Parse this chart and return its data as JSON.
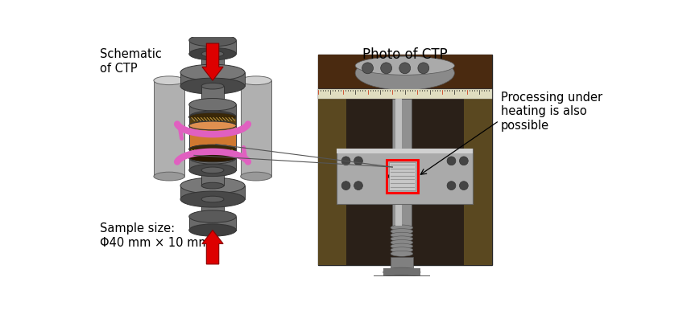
{
  "background_color": "#ffffff",
  "title_photo": "Photo of CTP",
  "label_schematic": "Schematic\nof CTP",
  "label_sample": "Sample size:\nΦ40 mm × 10 mm",
  "label_heating": "Processing under\nheating is also\npossible",
  "title_fontsize": 12,
  "label_fontsize": 10.5,
  "fig_width": 8.63,
  "fig_height": 3.86,
  "dpi": 100,
  "gray_dark": "#484848",
  "gray_med": "#606060",
  "gray_light": "#888888",
  "gray_lighter": "#aaaaaa",
  "gray_side": "#787878",
  "pink": "#e060c0",
  "red": "#dd0000"
}
